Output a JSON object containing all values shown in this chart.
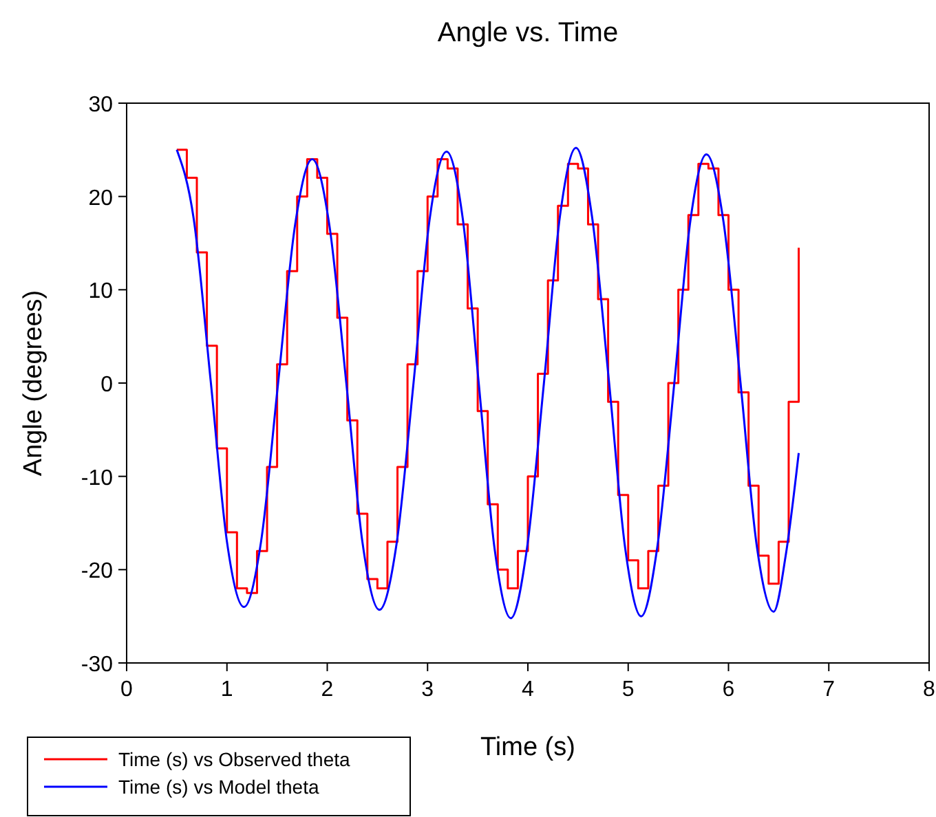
{
  "chart_data": {
    "type": "line",
    "title": "Angle vs. Time",
    "xlabel": "Time (s)",
    "ylabel": "Angle (degrees)",
    "xlim": [
      0,
      8
    ],
    "xticks": [
      0,
      1,
      2,
      3,
      4,
      5,
      6,
      7,
      8
    ],
    "ylim": [
      -30,
      30
    ],
    "yticks": [
      -30,
      -20,
      -10,
      0,
      10,
      20,
      30
    ],
    "grid": false,
    "legend": "bottom left",
    "marker": "none",
    "line_style": "solid",
    "series": [
      {
        "name": "Time (s) vs Observed theta",
        "type": "step",
        "color": "#ff0000",
        "x": [
          0.5,
          0.6,
          0.7,
          0.8,
          0.9,
          1.0,
          1.1,
          1.2,
          1.3,
          1.4,
          1.5,
          1.6,
          1.7,
          1.8,
          1.9,
          2.0,
          2.1,
          2.2,
          2.3,
          2.4,
          2.5,
          2.6,
          2.7,
          2.8,
          2.9,
          3.0,
          3.1,
          3.2,
          3.3,
          3.4,
          3.5,
          3.6,
          3.7,
          3.8,
          3.9,
          4.0,
          4.1,
          4.2,
          4.3,
          4.4,
          4.5,
          4.6,
          4.7,
          4.8,
          4.9,
          5.0,
          5.1,
          5.2,
          5.3,
          5.4,
          5.5,
          5.6,
          5.7,
          5.8,
          5.9,
          6.0,
          6.1,
          6.2,
          6.3,
          6.4,
          6.5,
          6.6,
          6.7
        ],
        "values": [
          25,
          22,
          14,
          4,
          -7,
          -16,
          -22,
          -22.5,
          -18,
          -9,
          2,
          12,
          20,
          24,
          22,
          16,
          7,
          -4,
          -14,
          -21,
          -22,
          -17,
          -9,
          2,
          12,
          20,
          24,
          23,
          17,
          8,
          -3,
          -13,
          -20,
          -22,
          -18,
          -10,
          1,
          11,
          19,
          23.5,
          23,
          17,
          9,
          -2,
          -12,
          -19,
          -22,
          -18,
          -11,
          0,
          10,
          18,
          23.5,
          23,
          18,
          10,
          -1,
          -11,
          -18.5,
          -21.5,
          -17,
          -2,
          14.5
        ]
      },
      {
        "name": "Time (s) vs Model theta",
        "color": "#0000ff",
        "x": [
          0.5,
          0.67,
          0.84,
          1.0,
          1.17,
          1.34,
          1.51,
          1.68,
          1.85,
          2.02,
          2.19,
          2.35,
          2.52,
          2.69,
          2.86,
          3.02,
          3.19,
          3.35,
          3.51,
          3.67,
          3.83,
          3.99,
          4.16,
          4.32,
          4.48,
          4.64,
          4.81,
          4.97,
          5.13,
          5.29,
          5.46,
          5.62,
          5.78,
          5.95,
          6.12,
          6.28,
          6.45,
          6.57,
          6.7
        ],
        "values": [
          25,
          17.5,
          0,
          -17,
          -24,
          -17,
          0,
          17,
          24,
          17,
          0,
          -17,
          -24.3,
          -17.3,
          0,
          17.5,
          24.8,
          17.7,
          0,
          -17.9,
          -25.2,
          -17.8,
          0,
          17.9,
          25.2,
          17.8,
          0,
          -17.7,
          -25,
          -17.6,
          0,
          17.4,
          24.5,
          17.3,
          0,
          -17.3,
          -24.5,
          -18.5,
          -7.5
        ]
      }
    ]
  }
}
